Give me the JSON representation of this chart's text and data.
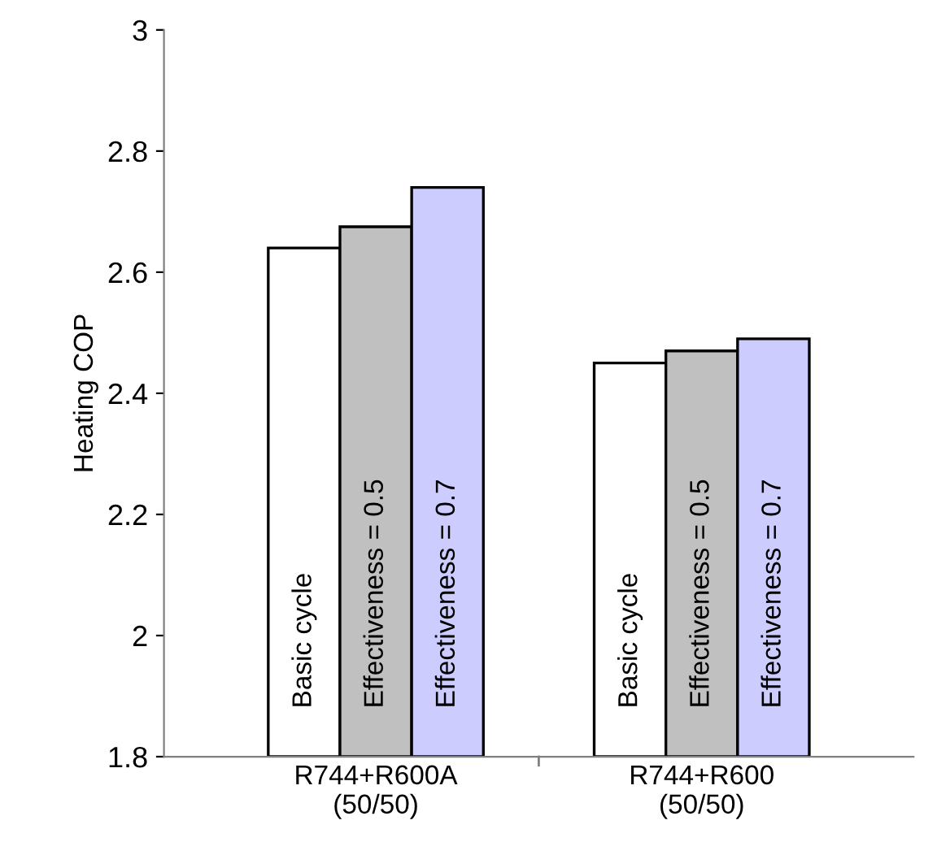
{
  "chart_data": {
    "type": "bar",
    "ylabel": "Heating COP",
    "categories": [
      "R744+R600A\n(50/50)",
      "R744+R600\n(50/50)"
    ],
    "series": [
      {
        "name": "Basic cycle",
        "color": "#ffffff",
        "values": [
          2.64,
          2.45
        ]
      },
      {
        "name": "Effectiveness = 0.5",
        "color": "#c0c0c0",
        "values": [
          2.675,
          2.47
        ]
      },
      {
        "name": "Effectiveness = 0.7",
        "color": "#ccccff",
        "values": [
          2.74,
          2.49
        ]
      }
    ],
    "ylim": [
      1.8,
      3
    ],
    "yticks": [
      1.8,
      2,
      2.2,
      2.4,
      2.6,
      2.8,
      3
    ],
    "grid": false,
    "legend": false
  }
}
